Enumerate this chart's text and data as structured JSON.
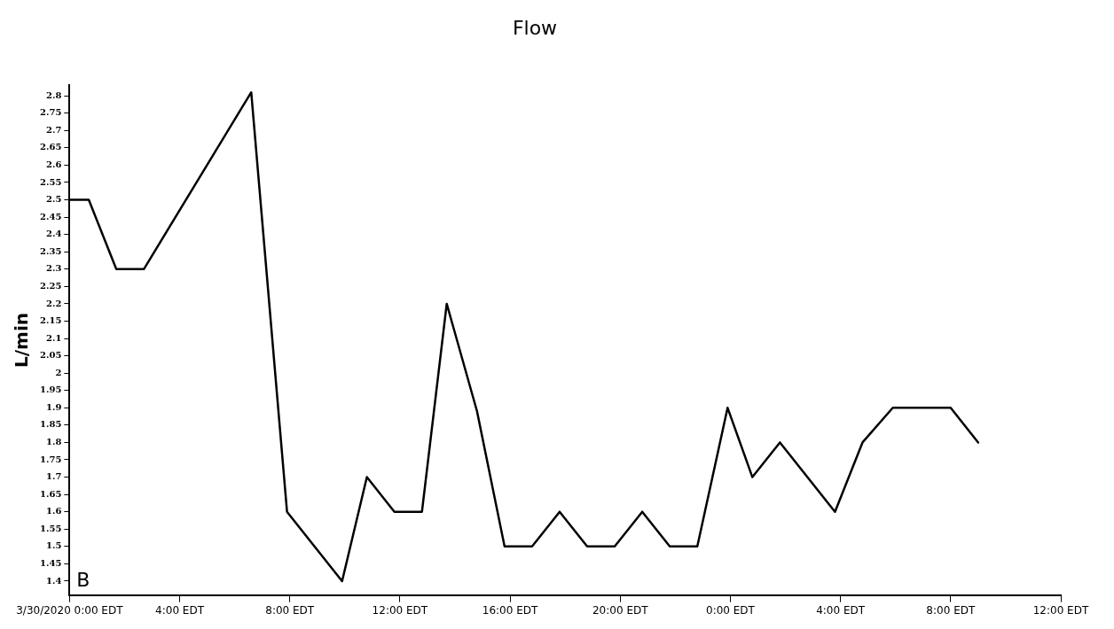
{
  "chart_data": {
    "type": "line",
    "title": "Flow",
    "ylabel": "L/min",
    "x": [
      "2020-03-30T00:00",
      "2020-03-30T00:42",
      "2020-03-30T01:42",
      "2020-03-30T02:42",
      "2020-03-30T06:36",
      "2020-03-30T07:54",
      "2020-03-30T09:54",
      "2020-03-30T10:48",
      "2020-03-30T11:48",
      "2020-03-30T12:48",
      "2020-03-30T13:42",
      "2020-03-30T14:48",
      "2020-03-30T15:48",
      "2020-03-30T16:48",
      "2020-03-30T17:48",
      "2020-03-30T18:48",
      "2020-03-30T19:48",
      "2020-03-30T20:48",
      "2020-03-30T21:48",
      "2020-03-30T22:48",
      "2020-03-30T23:54",
      "2020-03-31T00:48",
      "2020-03-31T01:48",
      "2020-03-31T03:48",
      "2020-03-31T04:48",
      "2020-03-31T05:54",
      "2020-03-31T08:00",
      "2020-03-31T09:00"
    ],
    "series": [
      {
        "color": "#000000",
        "values": [
          2.5,
          2.5,
          2.3,
          2.3,
          2.81,
          1.6,
          1.4,
          1.7,
          1.6,
          1.6,
          2.2,
          1.89,
          1.5,
          1.5,
          1.6,
          1.5,
          1.5,
          1.6,
          1.5,
          1.5,
          1.9,
          1.7,
          1.8,
          1.6,
          1.8,
          1.9,
          1.9,
          1.8
        ]
      }
    ],
    "xlim": [
      "2020-03-30T00:00",
      "2020-03-31T12:00"
    ],
    "xticks": [
      {
        "value": "2020-03-30T00:00",
        "label": "3/30/2020 0:00 EDT"
      },
      {
        "value": "2020-03-30T04:00",
        "label": "4:00 EDT"
      },
      {
        "value": "2020-03-30T08:00",
        "label": "8:00 EDT"
      },
      {
        "value": "2020-03-30T12:00",
        "label": "12:00 EDT"
      },
      {
        "value": "2020-03-30T16:00",
        "label": "16:00 EDT"
      },
      {
        "value": "2020-03-30T20:00",
        "label": "20:00 EDT"
      },
      {
        "value": "2020-03-31T00:00",
        "label": "0:00 EDT"
      },
      {
        "value": "2020-03-31T04:00",
        "label": "4:00 EDT"
      },
      {
        "value": "2020-03-31T08:00",
        "label": "8:00 EDT"
      },
      {
        "value": "2020-03-31T12:00",
        "label": "12:00 EDT"
      }
    ],
    "ylim": [
      1.36,
      2.83
    ],
    "yticks": [
      1.4,
      1.45,
      1.5,
      1.55,
      1.6,
      1.65,
      1.7,
      1.75,
      1.8,
      1.85,
      1.9,
      1.95,
      2,
      2.05,
      2.1,
      2.15,
      2.2,
      2.25,
      2.3,
      2.35,
      2.4,
      2.45,
      2.5,
      2.55,
      2.6,
      2.65,
      2.7,
      2.75,
      2.8
    ],
    "annotations": [
      "B"
    ],
    "grid": false,
    "legend": false,
    "marker": "none",
    "line_style": "solid"
  }
}
